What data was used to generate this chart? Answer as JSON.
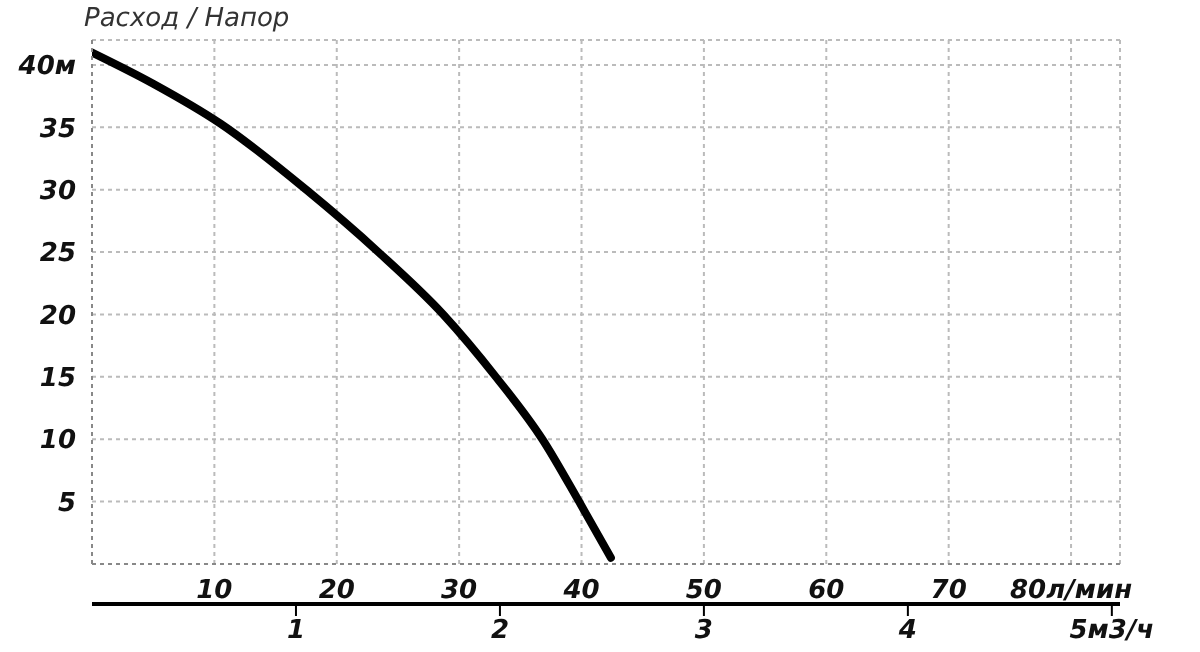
{
  "chart_data": {
    "type": "line",
    "title": "Расход / Напор",
    "x": [
      0,
      5,
      10.5,
      17.5,
      23.4,
      28.7,
      33,
      36.8,
      39.8,
      42.4
    ],
    "series": [
      {
        "color": "#000000",
        "values": [
          41,
          38.5,
          35.3,
          30,
          25,
          20,
          15,
          10,
          5,
          0.5
        ]
      }
    ],
    "xlim": [
      0,
      84
    ],
    "xticks": [
      10,
      20,
      30,
      40,
      50,
      60,
      70,
      {
        "value": 80,
        "label": "80л/мин"
      }
    ],
    "x2lim": [
      0,
      5.04
    ],
    "x2ticks": [
      1,
      2,
      3,
      4,
      {
        "value": 5,
        "label": "5м3/ч"
      }
    ],
    "ylim": [
      0,
      42
    ],
    "yticks": [
      5,
      10,
      15,
      20,
      25,
      30,
      35,
      {
        "value": 40,
        "label": "40м"
      }
    ],
    "grid": true,
    "marker": "none",
    "line_style": "solid",
    "legend": false
  }
}
